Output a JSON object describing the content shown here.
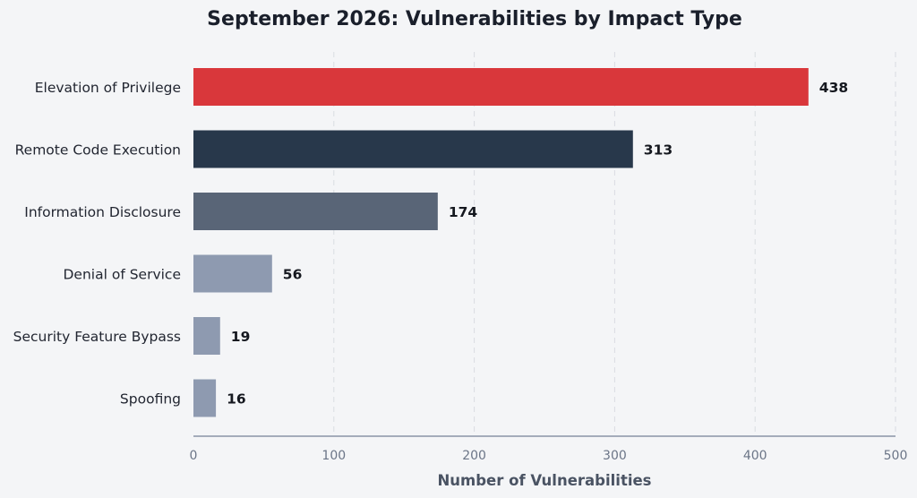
{
  "chart_data": {
    "type": "bar",
    "orientation": "horizontal",
    "title": "September 2026: Vulnerabilities by Impact Type",
    "xlabel": "Number of Vulnerabilities",
    "ylabel": "",
    "xlim": [
      0,
      500
    ],
    "x_ticks": [
      0,
      100,
      200,
      300,
      400,
      500
    ],
    "grid": "vertical dashed",
    "categories": [
      "Elevation of Privilege",
      "Remote Code Execution",
      "Information Disclosure",
      "Denial of Service",
      "Security Feature Bypass",
      "Spoofing"
    ],
    "values": [
      438,
      313,
      174,
      56,
      19,
      16
    ],
    "colors": [
      "#d9373b",
      "#28384b",
      "#596577",
      "#8e9ab0",
      "#8e9ab0",
      "#8e9ab0"
    ]
  }
}
